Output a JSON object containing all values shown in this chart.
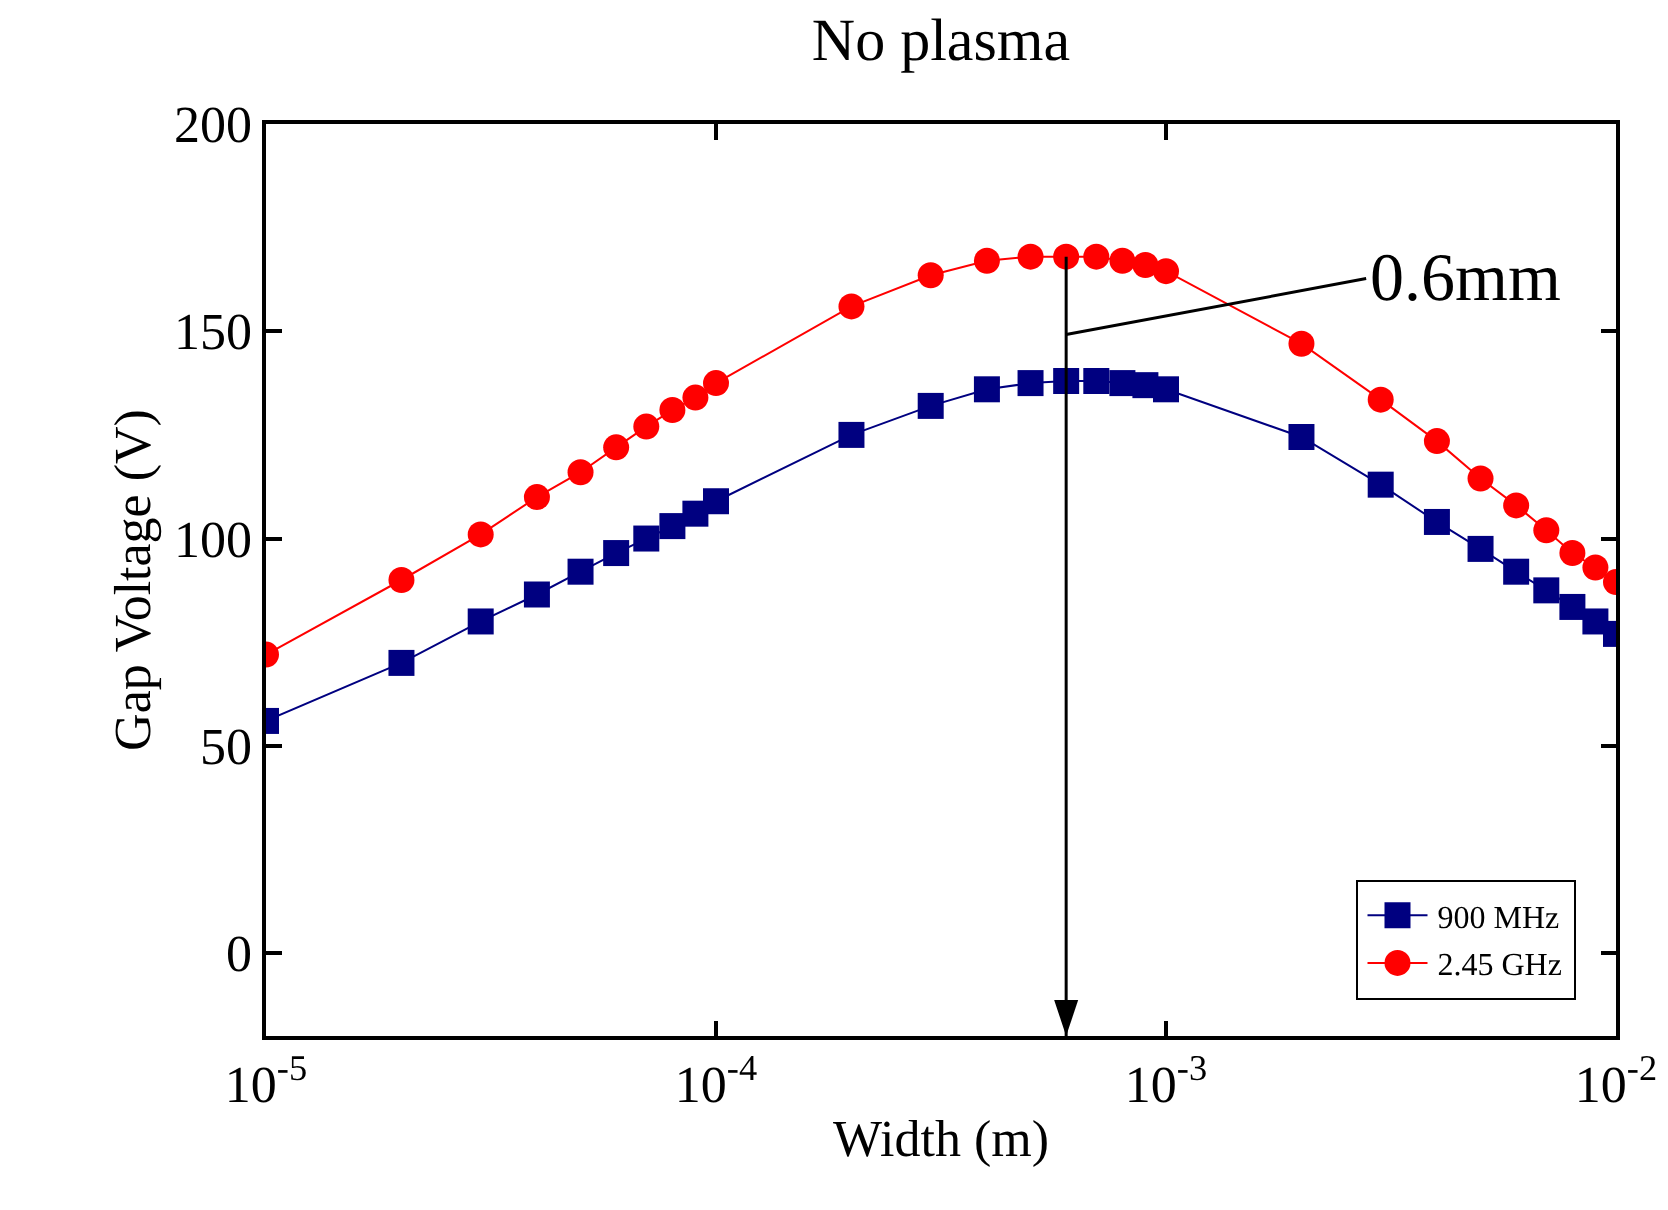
{
  "chart_data": {
    "type": "line",
    "title": "No plasma",
    "xlabel": "Width (m)",
    "ylabel": "Gap Voltage (V)",
    "log": "x",
    "x": [
      1e-05,
      2e-05,
      3e-05,
      4e-05,
      5e-05,
      6e-05,
      7e-05,
      8e-05,
      9e-05,
      0.0001,
      0.0002,
      0.0003,
      0.0004,
      0.0005,
      0.0006,
      0.0007,
      0.0008,
      0.0009,
      0.001,
      0.002,
      0.003,
      0.004,
      0.005,
      0.006,
      0.007,
      0.008,
      0.009,
      0.01
    ],
    "series": [
      {
        "name": "900 MHz",
        "color": "#000080",
        "marker": "square",
        "values": [
          56,
          70,
          80,
          86.5,
          92,
          96.5,
          100,
          103,
          106,
          109,
          125,
          132,
          136,
          137.5,
          138,
          138,
          137.5,
          137,
          136,
          124.5,
          113,
          104,
          97.5,
          92,
          87.5,
          83.5,
          80,
          77
        ]
      },
      {
        "name": "2.45 GHz",
        "color": "#ff0000",
        "marker": "circle",
        "values": [
          72,
          90,
          101,
          110,
          116,
          122,
          127,
          131,
          134,
          137.5,
          156,
          163.5,
          167,
          168,
          168,
          168,
          167,
          166,
          164.5,
          147,
          133.5,
          123.5,
          114.5,
          108,
          102,
          96.5,
          93,
          89.5
        ]
      }
    ],
    "xlim": [
      1e-05,
      0.01
    ],
    "xticks": [
      {
        "value": 1e-05,
        "label": "10$^{-5}$"
      },
      {
        "value": 0.0001,
        "label": "10$^{-4}$"
      },
      {
        "value": 0.001,
        "label": "10$^{-3}$"
      },
      {
        "value": 0.01,
        "label": "10$^{-2}$"
      }
    ],
    "ylim": [
      -20,
      200
    ],
    "yticks": [
      0,
      50,
      100,
      150,
      200
    ],
    "ref_lines": [
      {
        "axis": "x",
        "value": 0.0006,
        "color": "#000000",
        "label": "0.6mm"
      }
    ],
    "grid": false,
    "legend": "bottom right"
  }
}
